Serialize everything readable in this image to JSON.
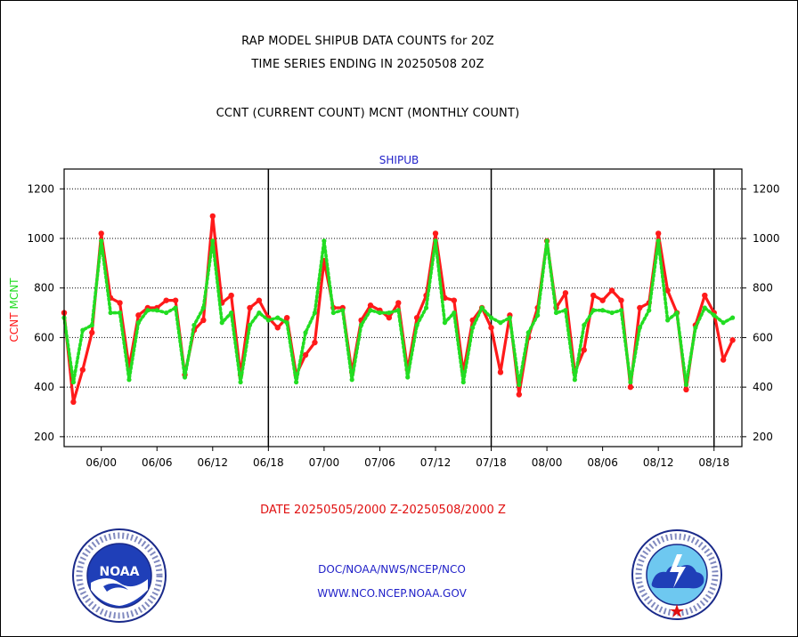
{
  "header": {
    "title_line1": "RAP MODEL SHIPUB DATA COUNTS for 20Z",
    "title_line2": "TIME SERIES ENDING IN 20250508 20Z",
    "legend_line": "CCNT (CURRENT COUNT) MCNT (MONTHLY COUNT)"
  },
  "footer": {
    "date_range": "DATE 20250505/2000 Z-20250508/2000 Z",
    "agency": "DOC/NOAA/NWS/NCEP/NCO",
    "website": "WWW.NCO.NCEP.NOAA.GOV"
  },
  "logos": {
    "noaa": {
      "center_text": "NOAA"
    }
  },
  "colors": {
    "ccnt": "#ff1a1a",
    "mcnt": "#22dd22",
    "subtitle": "#1f1fc8",
    "axis": "#000000"
  },
  "chart_data": {
    "type": "line",
    "title": "SHIPUB",
    "ylabel_parts": [
      "CCNT",
      "MCNT"
    ],
    "ylim": [
      160,
      1280
    ],
    "yticks": [
      200,
      400,
      600,
      800,
      1000,
      1200
    ],
    "xlim": [
      0,
      73
    ],
    "x_tick_positions": [
      4,
      10,
      16,
      22,
      28,
      34,
      40,
      46,
      52,
      58,
      64,
      70
    ],
    "x_tick_labels": [
      "06/00",
      "06/06",
      "06/12",
      "06/18",
      "07/00",
      "07/06",
      "07/12",
      "07/18",
      "08/00",
      "08/06",
      "08/12",
      "08/18"
    ],
    "day_boundaries": [
      22,
      46,
      70
    ],
    "grid": "horizontal-dotted",
    "series": [
      {
        "name": "CCNT",
        "color": "#ff1a1a",
        "style": "solid",
        "values": [
          700,
          340,
          470,
          620,
          1020,
          760,
          740,
          480,
          690,
          720,
          720,
          750,
          750,
          450,
          630,
          670,
          1090,
          740,
          770,
          450,
          720,
          750,
          680,
          640,
          680,
          450,
          530,
          580,
          910,
          720,
          720,
          460,
          670,
          730,
          710,
          680,
          740,
          470,
          680,
          770,
          1020,
          760,
          750,
          460,
          670,
          720,
          640,
          460,
          690,
          370,
          600,
          720,
          990,
          720,
          780,
          460,
          550,
          770,
          750,
          790,
          750,
          400,
          720,
          740,
          1020,
          790,
          700,
          390,
          650,
          770,
          700,
          510,
          590
        ]
      },
      {
        "name": "MCNT",
        "color": "#22dd22",
        "style": "dotted",
        "values": [
          680,
          420,
          630,
          650,
          990,
          700,
          700,
          430,
          660,
          710,
          710,
          700,
          720,
          440,
          650,
          720,
          990,
          660,
          700,
          420,
          650,
          700,
          670,
          680,
          660,
          420,
          620,
          700,
          990,
          700,
          710,
          430,
          650,
          710,
          700,
          700,
          710,
          440,
          650,
          720,
          990,
          660,
          700,
          420,
          640,
          720,
          680,
          660,
          680,
          410,
          620,
          690,
          990,
          700,
          710,
          430,
          650,
          710,
          710,
          700,
          710,
          420,
          640,
          710,
          990,
          670,
          700,
          410,
          640,
          720,
          690,
          660,
          680
        ]
      }
    ]
  }
}
